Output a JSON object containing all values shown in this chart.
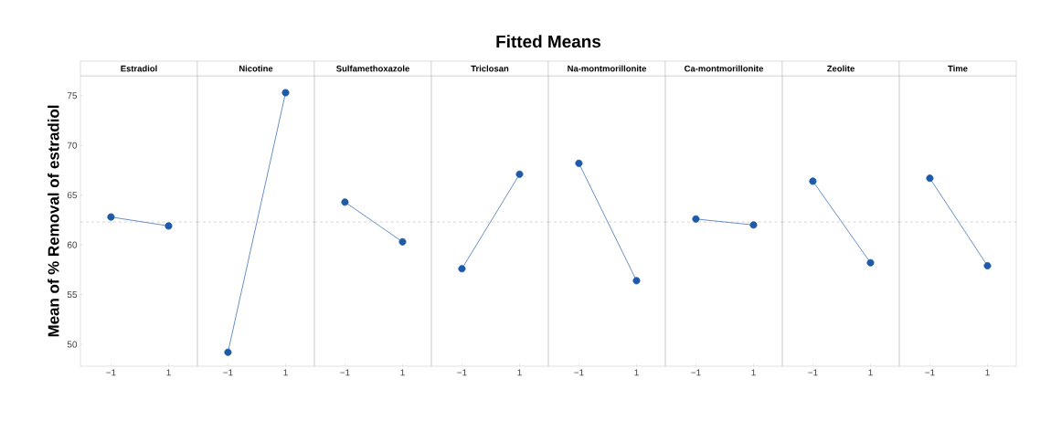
{
  "chart_data": [
    {
      "type": "other",
      "title": "Fitted Means"
    },
    {
      "type": "line",
      "subtitle": "Estradiol",
      "ylabel": "Mean of % Removal of estradiol",
      "categories": [
        "−1",
        "1"
      ],
      "values": [
        62.8,
        61.9
      ],
      "color": "#1f5aa8",
      "marker": "circle",
      "ylim": [
        47.8,
        77
      ],
      "yticks": [
        50,
        55,
        60,
        65,
        70,
        75
      ],
      "ref_lines": [
        {
          "axis": "y",
          "value": 62.3,
          "color": "#b5b5b5",
          "line_style": "dashed"
        }
      ]
    },
    {
      "type": "line",
      "subtitle": "Nicotine",
      "categories": [
        "−1",
        "1"
      ],
      "values": [
        49.2,
        75.3
      ],
      "color": "#1f5aa8",
      "marker": "circle",
      "ylim": [
        47.8,
        77
      ],
      "tick_labels": "x",
      "ref_lines": [
        {
          "axis": "y",
          "value": 62.3,
          "color": "#b5b5b5",
          "line_style": "dashed"
        }
      ]
    },
    {
      "type": "line",
      "subtitle": "Sulfamethoxazole",
      "categories": [
        "−1",
        "1"
      ],
      "values": [
        64.3,
        60.3
      ],
      "color": "#1f5aa8",
      "marker": "circle",
      "ylim": [
        47.8,
        77
      ],
      "tick_labels": "x",
      "ref_lines": [
        {
          "axis": "y",
          "value": 62.3,
          "color": "#b5b5b5",
          "line_style": "dashed"
        }
      ]
    },
    {
      "type": "line",
      "subtitle": "Triclosan",
      "categories": [
        "−1",
        "1"
      ],
      "values": [
        57.6,
        67.1
      ],
      "color": "#1f5aa8",
      "marker": "circle",
      "ylim": [
        47.8,
        77
      ],
      "tick_labels": "x",
      "ref_lines": [
        {
          "axis": "y",
          "value": 62.3,
          "color": "#b5b5b5",
          "line_style": "dashed"
        }
      ]
    },
    {
      "type": "line",
      "subtitle": "Na-montmorillonite",
      "categories": [
        "−1",
        "1"
      ],
      "values": [
        68.2,
        56.4
      ],
      "color": "#1f5aa8",
      "marker": "circle",
      "ylim": [
        47.8,
        77
      ],
      "tick_labels": "x",
      "ref_lines": [
        {
          "axis": "y",
          "value": 62.3,
          "color": "#b5b5b5",
          "line_style": "dashed"
        }
      ]
    },
    {
      "type": "line",
      "subtitle": "Ca-montmorillonite",
      "categories": [
        "−1",
        "1"
      ],
      "values": [
        62.6,
        62.0
      ],
      "color": "#1f5aa8",
      "marker": "circle",
      "ylim": [
        47.8,
        77
      ],
      "tick_labels": "x",
      "ref_lines": [
        {
          "axis": "y",
          "value": 62.3,
          "color": "#b5b5b5",
          "line_style": "dashed"
        }
      ]
    },
    {
      "type": "line",
      "subtitle": "Zeolite",
      "categories": [
        "−1",
        "1"
      ],
      "values": [
        66.4,
        58.2
      ],
      "color": "#1f5aa8",
      "marker": "circle",
      "ylim": [
        47.8,
        77
      ],
      "tick_labels": "x",
      "ref_lines": [
        {
          "axis": "y",
          "value": 62.3,
          "color": "#b5b5b5",
          "line_style": "dashed"
        }
      ]
    },
    {
      "type": "line",
      "subtitle": "Time",
      "categories": [
        "−1",
        "1"
      ],
      "values": [
        66.7,
        57.9
      ],
      "color": "#1f5aa8",
      "marker": "circle",
      "ylim": [
        47.8,
        77
      ],
      "tick_labels": "x",
      "ref_lines": [
        {
          "axis": "y",
          "value": 62.3,
          "color": "#b5b5b5",
          "line_style": "dashed"
        }
      ]
    }
  ]
}
